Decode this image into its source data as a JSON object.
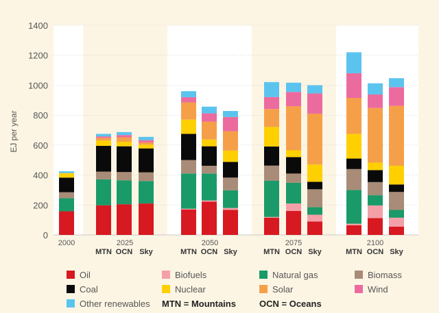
{
  "chart_data": {
    "type": "bar",
    "stacked": true,
    "ylabel": "EJ per year",
    "ylim": [
      0,
      1400
    ],
    "yticks": [
      0,
      200,
      400,
      600,
      800,
      1000,
      1200,
      1400
    ],
    "groups": [
      {
        "year": "2000",
        "bars": [
          "2000"
        ]
      },
      {
        "year": "2025",
        "bars": [
          "MTN",
          "OCN",
          "Sky"
        ]
      },
      {
        "year": "2050",
        "bars": [
          "MTN",
          "OCN",
          "Sky"
        ]
      },
      {
        "year": "2075",
        "bars": [
          "MTN",
          "OCN",
          "Sky"
        ]
      },
      {
        "year": "2100",
        "bars": [
          "MTN",
          "OCN",
          "Sky"
        ]
      }
    ],
    "categories": [
      "2000",
      "2025 MTN",
      "2025 OCN",
      "2025 Sky",
      "2050 MTN",
      "2050 OCN",
      "2050 Sky",
      "2075 MTN",
      "2075 OCN",
      "2075 Sky",
      "2100 MTN",
      "2100 OCN",
      "2100 Sky"
    ],
    "series": [
      {
        "name": "Oil",
        "color": "#d71921",
        "values": [
          158,
          198,
          205,
          210,
          170,
          222,
          168,
          115,
          160,
          90,
          65,
          112,
          55
        ]
      },
      {
        "name": "Biofuels",
        "color": "#f4a0a8",
        "values": [
          0,
          0,
          0,
          0,
          5,
          8,
          12,
          5,
          50,
          45,
          10,
          85,
          60
        ]
      },
      {
        "name": "Natural gas",
        "color": "#1a9a68",
        "values": [
          87,
          173,
          160,
          150,
          235,
          180,
          118,
          243,
          138,
          50,
          225,
          68,
          52
        ]
      },
      {
        "name": "Biomass",
        "color": "#a88c78",
        "values": [
          40,
          52,
          55,
          58,
          90,
          52,
          85,
          100,
          62,
          120,
          140,
          88,
          120
        ]
      },
      {
        "name": "Coal",
        "color": "#0a0a0a",
        "values": [
          98,
          172,
          172,
          160,
          175,
          130,
          105,
          128,
          110,
          50,
          70,
          80,
          50
        ]
      },
      {
        "name": "Nuclear",
        "color": "#fed002",
        "values": [
          30,
          35,
          30,
          25,
          95,
          45,
          75,
          130,
          45,
          115,
          165,
          50,
          125
        ]
      },
      {
        "name": "Solar",
        "color": "#f5a049",
        "values": [
          0,
          18,
          30,
          15,
          115,
          120,
          130,
          120,
          295,
          340,
          240,
          365,
          400
        ]
      },
      {
        "name": "Wind",
        "color": "#ec6b9f",
        "values": [
          0,
          10,
          15,
          15,
          35,
          55,
          95,
          80,
          95,
          135,
          165,
          90,
          125
        ]
      },
      {
        "name": "Other renewables",
        "color": "#5bc4ee",
        "values": [
          12,
          17,
          20,
          22,
          40,
          45,
          40,
          100,
          62,
          55,
          140,
          75,
          60
        ]
      }
    ]
  },
  "legend_notes": [
    {
      "abbr": "MTN",
      "full": "Mountains"
    },
    {
      "abbr": "OCN",
      "full": "Oceans"
    }
  ],
  "colors": {
    "background": "#fdf5e4",
    "band": "#ffffff",
    "grid": "#c8c8c8"
  }
}
